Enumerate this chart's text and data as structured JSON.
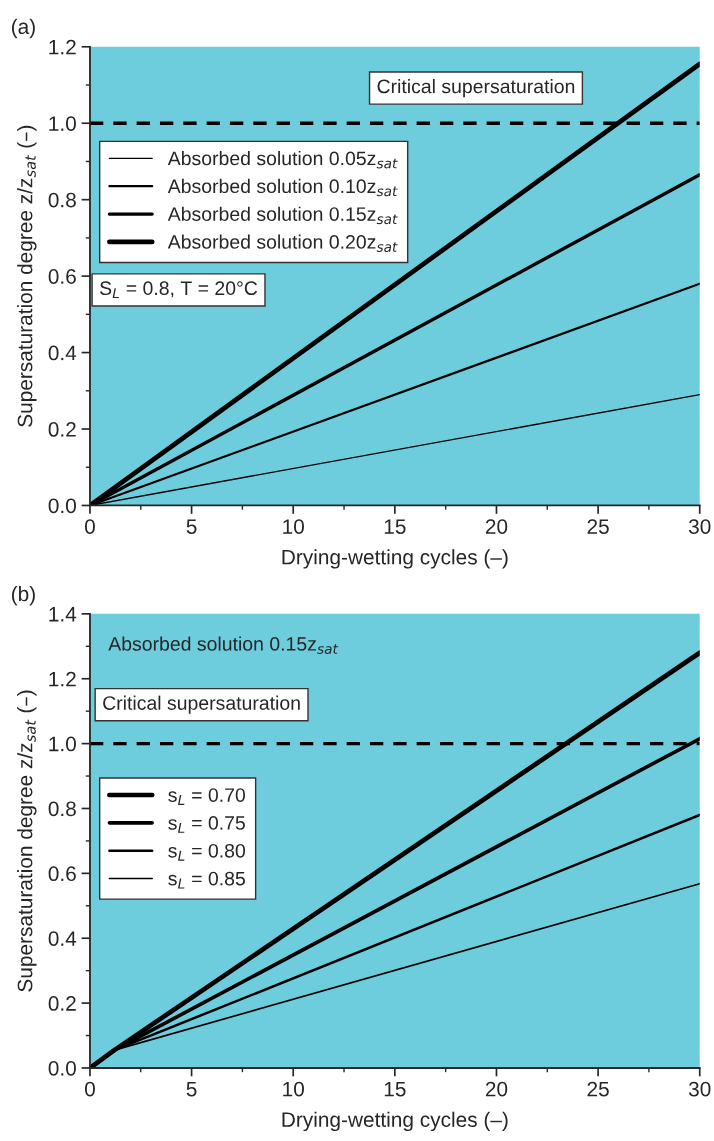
{
  "chart_data": [
    {
      "type": "line",
      "xlabel": "Drying-wetting cycles (–)",
      "ylabel": "Supersaturation degree z/z$_{sat}$ (–)",
      "annotations": [
        "(a)",
        "S$_{L}$ = 0.8, T = 20°C"
      ],
      "x": [
        0,
        30
      ],
      "series": [
        {
          "name": "Absorbed solution 0.05z$_{sat}$",
          "color": "#000000",
          "values": [
            0,
            0.29
          ]
        },
        {
          "name": "Absorbed solution 0.10z$_{sat}$",
          "color": "#000000",
          "values": [
            0,
            0.58
          ]
        },
        {
          "name": "Absorbed solution 0.15z$_{sat}$",
          "color": "#000000",
          "values": [
            0,
            0.865
          ]
        },
        {
          "name": "Absorbed solution 0.20z$_{sat}$",
          "color": "#000000",
          "values": [
            0,
            1.155
          ]
        }
      ],
      "ref_lines": [
        {
          "axis": "y",
          "value": 1.0,
          "label": "Critical supersaturation",
          "color": "#000000",
          "line_style": "dashed"
        }
      ],
      "xlim": [
        0,
        30
      ],
      "xticks": [
        0,
        5,
        10,
        15,
        20,
        25,
        30
      ],
      "ylim": [
        0,
        1.2
      ],
      "yticks": [
        {
          "value": 0,
          "label": "0.0"
        },
        {
          "value": 0.2,
          "label": "0.2"
        },
        {
          "value": 0.4,
          "label": "0.4"
        },
        {
          "value": 0.6,
          "label": "0.6"
        },
        {
          "value": 0.8,
          "label": "0.8"
        },
        {
          "value": 1.0,
          "label": "1.0"
        },
        {
          "value": 1.2,
          "label": "1.2"
        }
      ],
      "grid": false,
      "legend": "top left",
      "marker": "none",
      "line_style": "solid"
    },
    {
      "type": "line",
      "xlabel": "Drying-wetting cycles (–)",
      "ylabel": "Supersaturation degree z/z$_{sat}$ (–)",
      "annotations": [
        "(b)",
        "Absorbed solution 0.15z$_{sat}$"
      ],
      "x": [
        0,
        1.2,
        30
      ],
      "series": [
        {
          "name": "s$_{L}$ = 0.70",
          "color": "#000000",
          "values": [
            0,
            0.055,
            1.28
          ]
        },
        {
          "name": "s$_{L}$ = 0.75",
          "color": "#000000",
          "values": [
            0,
            0.055,
            1.015
          ]
        },
        {
          "name": "s$_{L}$ = 0.80",
          "color": "#000000",
          "values": [
            0,
            0.055,
            0.78
          ]
        },
        {
          "name": "s$_{L}$ = 0.85",
          "color": "#000000",
          "values": [
            0,
            0.055,
            0.568
          ]
        }
      ],
      "ref_lines": [
        {
          "axis": "y",
          "value": 1.0,
          "label": "Critical supersaturation",
          "color": "#000000",
          "line_style": "dashed"
        }
      ],
      "xlim": [
        0,
        30
      ],
      "xticks": [
        0,
        5,
        10,
        15,
        20,
        25,
        30
      ],
      "ylim": [
        0,
        1.4
      ],
      "yticks": [
        {
          "value": 0,
          "label": "0.0"
        },
        {
          "value": 0.2,
          "label": "0.2"
        },
        {
          "value": 0.4,
          "label": "0.4"
        },
        {
          "value": 0.6,
          "label": "0.6"
        },
        {
          "value": 0.8,
          "label": "0.8"
        },
        {
          "value": 1.0,
          "label": "1.0"
        },
        {
          "value": 1.2,
          "label": "1.2"
        },
        {
          "value": 1.4,
          "label": "1.4"
        }
      ],
      "grid": false,
      "legend": "left",
      "marker": "none",
      "line_style": "solid"
    }
  ]
}
